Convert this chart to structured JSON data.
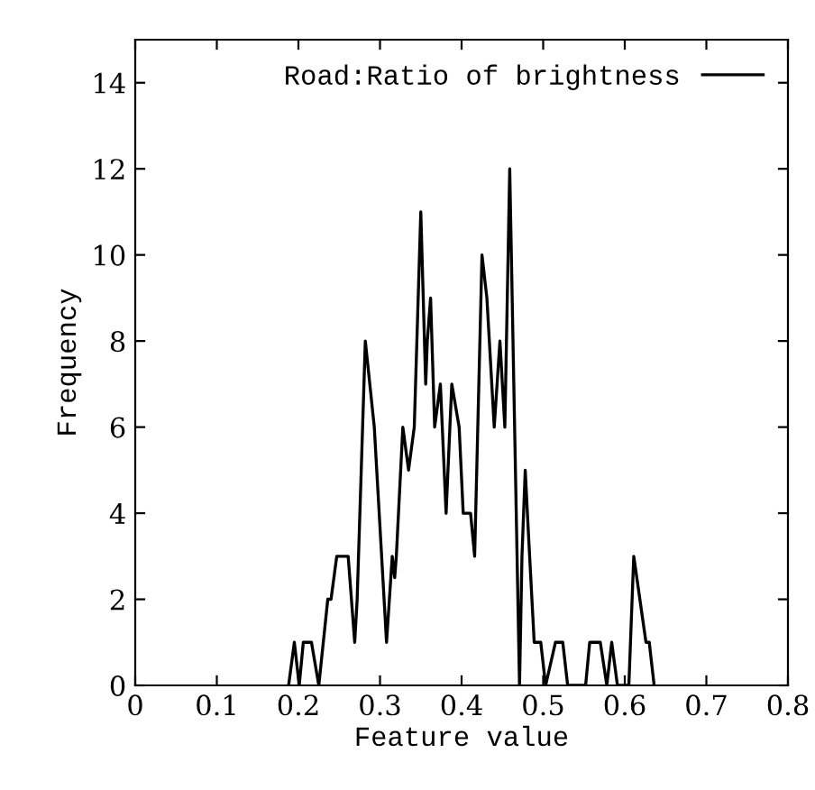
{
  "chart_data": {
    "type": "line",
    "xlabel": "Feature value",
    "ylabel": "Frequency",
    "xlim": [
      0,
      0.8
    ],
    "ylim": [
      0,
      15
    ],
    "xticks": [
      0,
      0.1,
      0.2,
      0.3,
      0.4,
      0.5,
      0.6,
      0.7,
      0.8
    ],
    "yticks": [
      0,
      2,
      4,
      6,
      8,
      10,
      12,
      14
    ],
    "legend": "top right",
    "grid": false,
    "series": [
      {
        "name": "Road:Ratio of brightness",
        "color": "#000000",
        "x": [
          0.188,
          0.195,
          0.201,
          0.206,
          0.216,
          0.225,
          0.236,
          0.24,
          0.247,
          0.261,
          0.269,
          0.272,
          0.282,
          0.293,
          0.308,
          0.315,
          0.318,
          0.32,
          0.328,
          0.335,
          0.342,
          0.35,
          0.356,
          0.358,
          0.362,
          0.367,
          0.374,
          0.381,
          0.388,
          0.397,
          0.402,
          0.411,
          0.416,
          0.425,
          0.431,
          0.44,
          0.447,
          0.453,
          0.459,
          0.471,
          0.474,
          0.478,
          0.482,
          0.489,
          0.497,
          0.503,
          0.515,
          0.524,
          0.53,
          0.552,
          0.557,
          0.57,
          0.578,
          0.584,
          0.591,
          0.605,
          0.611,
          0.626,
          0.63,
          0.636
        ],
        "values": [
          0,
          1,
          0,
          1,
          1,
          0,
          2,
          2,
          3,
          3,
          1,
          2,
          8,
          6,
          1,
          3,
          2.5,
          3,
          6,
          5,
          6,
          11,
          7,
          8,
          9,
          6,
          7,
          4,
          7,
          6,
          4,
          4,
          3,
          10,
          9,
          6,
          8,
          6,
          12,
          0,
          3,
          5,
          3.5,
          1,
          1,
          0,
          1,
          1,
          0,
          0,
          1,
          1,
          0,
          1,
          0,
          0,
          3,
          1,
          1,
          0
        ]
      }
    ]
  }
}
